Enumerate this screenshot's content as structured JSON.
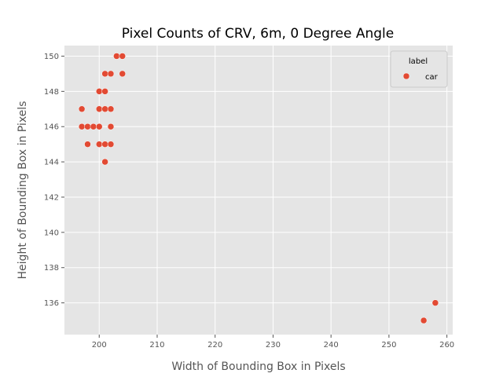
{
  "chart_data": {
    "type": "scatter",
    "title": "Pixel Counts of CRV, 6m, 0 Degree Angle",
    "xlabel": "Width of Bounding Box in Pixels",
    "ylabel": "Height of Bounding Box in Pixels",
    "xlim": [
      194,
      261
    ],
    "ylim": [
      134.2,
      150.6
    ],
    "xticks": [
      200,
      210,
      220,
      230,
      240,
      250,
      260
    ],
    "yticks": [
      136,
      138,
      140,
      142,
      144,
      146,
      148,
      150
    ],
    "grid": true,
    "legend": {
      "title": "label",
      "position": "top-right",
      "entries": [
        "car"
      ]
    },
    "series": [
      {
        "name": "car",
        "color": "#e24a33",
        "points": [
          [
            203,
            150
          ],
          [
            204,
            150
          ],
          [
            201,
            149
          ],
          [
            202,
            149
          ],
          [
            204,
            149
          ],
          [
            200,
            148
          ],
          [
            201,
            148
          ],
          [
            197,
            147
          ],
          [
            200,
            147
          ],
          [
            201,
            147
          ],
          [
            202,
            147
          ],
          [
            197,
            146
          ],
          [
            198,
            146
          ],
          [
            199,
            146
          ],
          [
            200,
            146
          ],
          [
            202,
            146
          ],
          [
            198,
            145
          ],
          [
            200,
            145
          ],
          [
            201,
            145
          ],
          [
            202,
            145
          ],
          [
            201,
            144
          ],
          [
            258,
            136
          ],
          [
            256,
            135
          ]
        ]
      }
    ]
  }
}
